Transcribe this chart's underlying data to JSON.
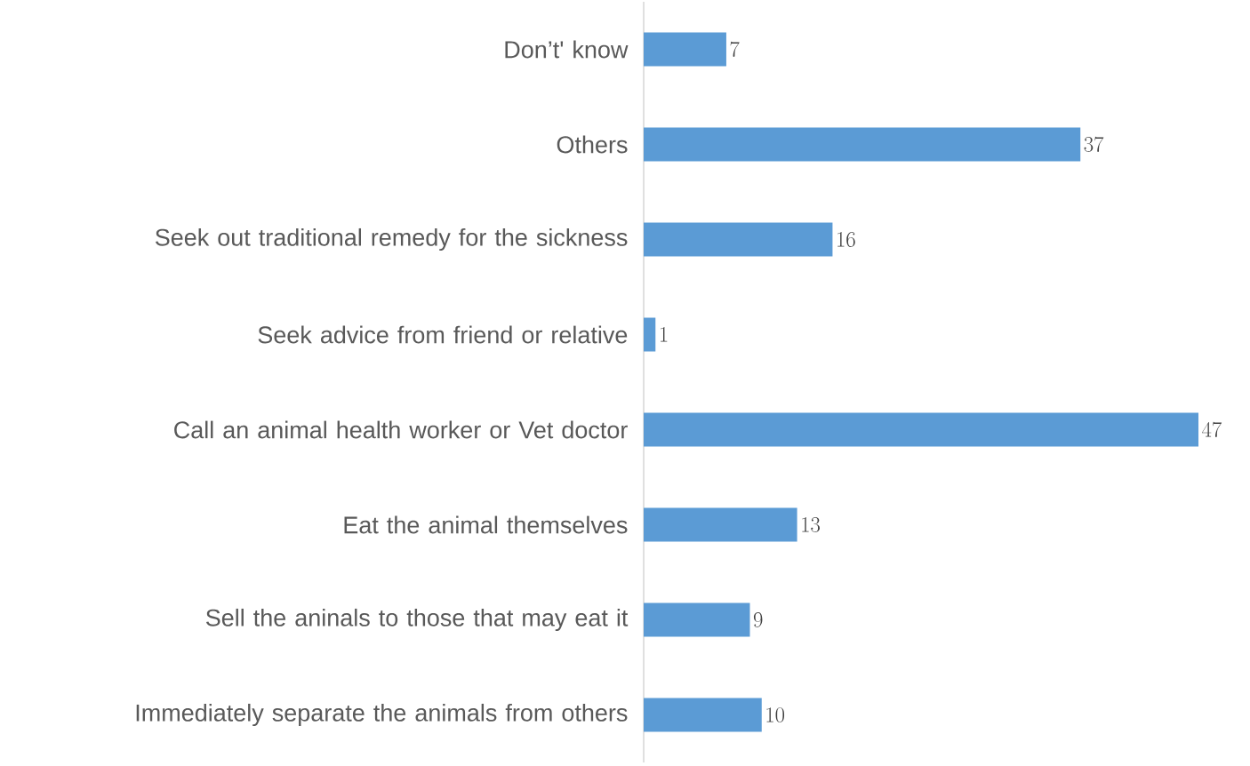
{
  "chart_data": {
    "type": "bar",
    "orientation": "horizontal",
    "data_labels": true,
    "color": "#5b9bd5",
    "categories": [
      "Don’t' know",
      "Others",
      "Seek out traditional remedy for the sickness",
      "Seek advice from friend or relative",
      "Call an animal health worker or Vet doctor",
      "Eat the animal themselves",
      "Sell the aninals to those that may eat it",
      "Immediately separate the animals from others"
    ],
    "values": [
      7,
      37,
      16,
      1,
      47,
      13,
      9,
      10
    ]
  }
}
